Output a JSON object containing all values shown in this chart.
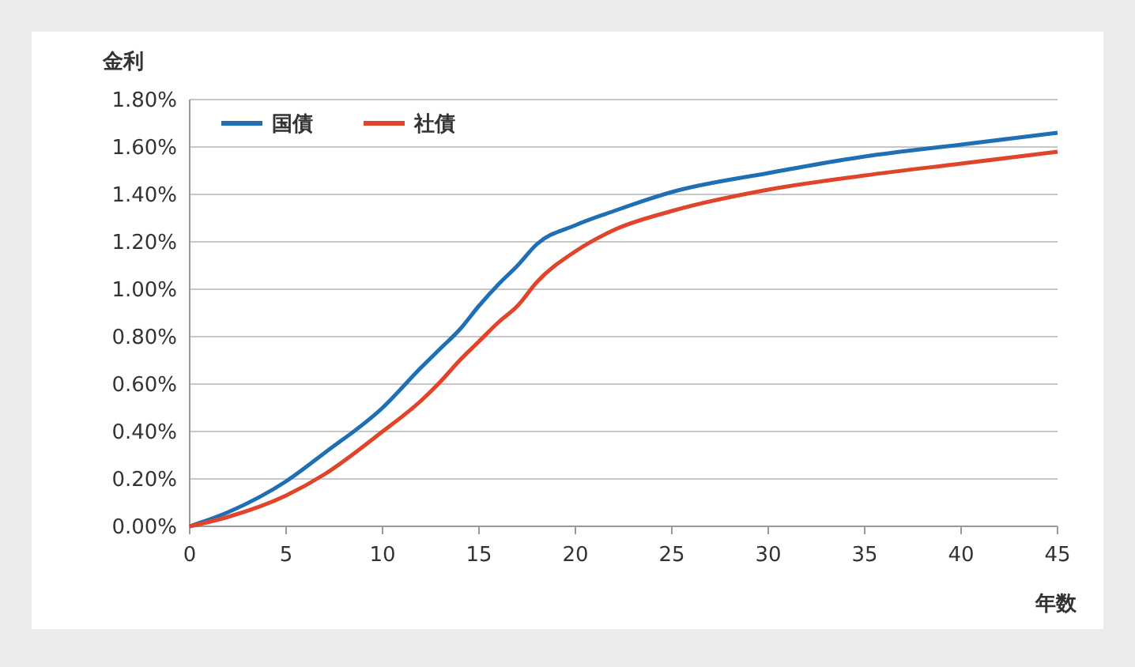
{
  "chart_data": {
    "type": "line",
    "ylabel": "金利",
    "xlabel": "年数",
    "x": [
      0,
      2,
      5,
      7,
      10,
      12,
      13,
      14,
      15,
      16,
      17,
      18,
      20,
      22,
      25,
      30,
      35,
      40,
      45
    ],
    "series": [
      {
        "name": "国債",
        "color": "#1f6fb4",
        "values": [
          0,
          0.06,
          0.19,
          0.31,
          0.5,
          0.67,
          0.75,
          0.83,
          0.93,
          1.02,
          1.1,
          1.19,
          1.27,
          1.33,
          1.41,
          1.49,
          1.56,
          1.61,
          1.66
        ]
      },
      {
        "name": "社債",
        "color": "#e0442a",
        "values": [
          0,
          0.04,
          0.13,
          0.22,
          0.4,
          0.53,
          0.61,
          0.7,
          0.78,
          0.86,
          0.93,
          1.03,
          1.16,
          1.25,
          1.33,
          1.42,
          1.48,
          1.53,
          1.58
        ]
      }
    ],
    "xlim": [
      0,
      45
    ],
    "xticks": [
      0,
      5,
      10,
      15,
      20,
      25,
      30,
      35,
      40,
      45
    ],
    "ylim": [
      0,
      1.8
    ],
    "yticks": [
      {
        "value": 0,
        "label": "0.00%"
      },
      {
        "value": 0.2,
        "label": "0.20%"
      },
      {
        "value": 0.4,
        "label": "0.40%"
      },
      {
        "value": 0.6,
        "label": "0.60%"
      },
      {
        "value": 0.8,
        "label": "0.80%"
      },
      {
        "value": 1,
        "label": "1.00%"
      },
      {
        "value": 1.2,
        "label": "1.20%"
      },
      {
        "value": 1.4,
        "label": "1.40%"
      },
      {
        "value": 1.6,
        "label": "1.60%"
      },
      {
        "value": 1.8,
        "label": "1.80%"
      }
    ],
    "grid": "y",
    "legend": "top left",
    "marker": "none",
    "line_style": "solid"
  }
}
